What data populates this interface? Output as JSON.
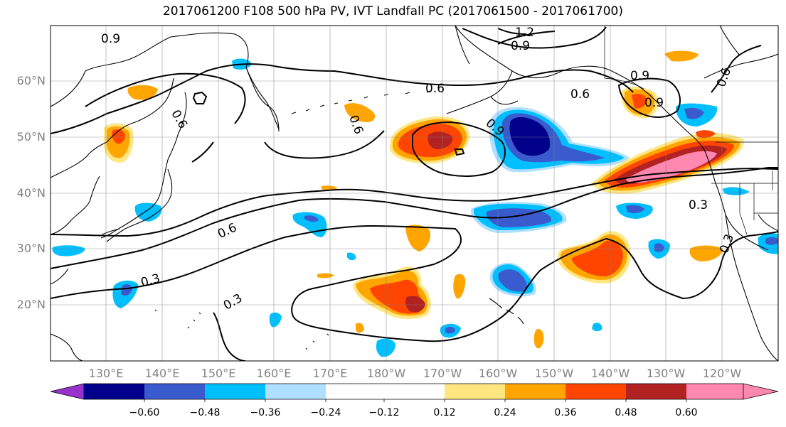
{
  "title": "2017061200 F108 500 hPa PV, IVT Landfall PC (2017061500 - 2017061700)",
  "lat_labels": [
    "60°N",
    "50°N",
    "40°N",
    "30°N",
    "20°N"
  ],
  "lon_labels": [
    "130°E",
    "140°E",
    "150°E",
    "160°E",
    "170°E",
    "180°W",
    "170°W",
    "160°W",
    "150°W",
    "140°W",
    "130°W",
    "120°W"
  ],
  "contour_labels": [
    "0.9",
    "1.2",
    "0.9",
    "0.6",
    "0.6",
    "0.9",
    "0.6",
    "0.9",
    "0.9",
    "0.6",
    "0.6",
    "0.6",
    "0.3",
    "0.3",
    "0.3",
    "0.3"
  ],
  "colorbar": {
    "tick_labels": [
      "−0.60",
      "−0.48",
      "−0.36",
      "−0.24",
      "−0.12",
      "0.12",
      "0.24",
      "0.36",
      "0.48",
      "0.60"
    ],
    "colors": [
      "#9932cc",
      "#00008b",
      "#3a5bcd",
      "#00bfff",
      "#b0e0ff",
      "#ffffff",
      "#ffe680",
      "#ffa500",
      "#ff4500",
      "#b22222",
      "#ff88b0"
    ]
  }
}
